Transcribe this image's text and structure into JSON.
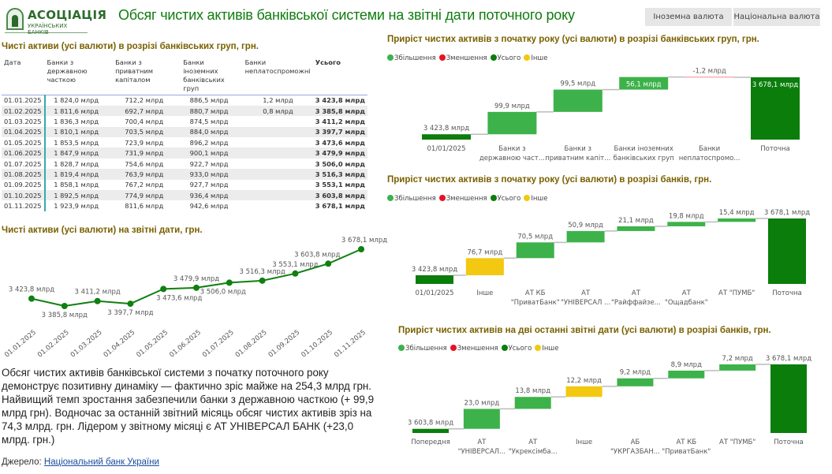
{
  "header": {
    "logo_line1": "АСОЦІАЦІЯ",
    "logo_line2": "УКРАЇНСЬКИХ БАНКІВ",
    "title": "Обсяг чистих активів  банківської системи на звітні дати поточного року",
    "btn_foreign": "Іноземна валюта",
    "btn_national": "Національна валюта"
  },
  "table": {
    "title": "Чисті активи    (усі валюти) в розрізі банківських груп,  грн.",
    "headers": [
      "Дата",
      "Банки з державною часткою",
      "Банки з приватним капіталом",
      "Банки іноземних банківських груп",
      "Банки неплатоспроможні",
      "Усього"
    ],
    "rows": [
      [
        "01.01.2025",
        "1 824,0 млрд",
        "712,2 млрд",
        "886,5 млрд",
        "1,2 млрд",
        "3 423,8 млрд"
      ],
      [
        "01.02.2025",
        "1 811,6 млрд",
        "692,7 млрд",
        "880,7 млрд",
        "0,8 млрд",
        "3 385,8 млрд"
      ],
      [
        "01.03.2025",
        "1 836,3 млрд",
        "700,4 млрд",
        "874,5 млрд",
        "",
        "3 411,2 млрд"
      ],
      [
        "01.04.2025",
        "1 810,1 млрд",
        "703,5 млрд",
        "884,0 млрд",
        "",
        "3 397,7 млрд"
      ],
      [
        "01.05.2025",
        "1 853,5 млрд",
        "723,9 млрд",
        "896,2 млрд",
        "",
        "3 473,6 млрд"
      ],
      [
        "01.06.2025",
        "1 847,9 млрд",
        "731,9 млрд",
        "900,1 млрд",
        "",
        "3 479,9 млрд"
      ],
      [
        "01.07.2025",
        "1 828,7 млрд",
        "754,6 млрд",
        "922,7 млрд",
        "",
        "3 506,0 млрд"
      ],
      [
        "01.08.2025",
        "1 819,4 млрд",
        "763,9 млрд",
        "933,0 млрд",
        "",
        "3 516,3 млрд"
      ],
      [
        "01.09.2025",
        "1 858,1 млрд",
        "767,2 млрд",
        "927,7 млрд",
        "",
        "3 553,1 млрд"
      ],
      [
        "01.10.2025",
        "1 892,5 млрд",
        "774,9 млрд",
        "936,4 млрд",
        "",
        "3 603,8 млрд"
      ],
      [
        "01.11.2025",
        "1 923,9 млрд",
        "811,6 млрд",
        "942,6 млрд",
        "",
        "3 678,1 млрд"
      ]
    ]
  },
  "legend": {
    "increase": "Збільшення",
    "decrease": "Зменшення",
    "total": "Усього",
    "other": "Інше"
  },
  "colors": {
    "increase": "#3db24a",
    "decrease": "#e81123",
    "total": "#0b7d0b",
    "other": "#f2c811",
    "title": "#107c10",
    "section": "#7a6000"
  },
  "chart_data": [
    {
      "type": "line",
      "title": "Чисті активи    (усі валюти) на звітні дати, грн.",
      "x": [
        "01.01.2025",
        "01.02.2025",
        "01.03.2025",
        "01.04.2025",
        "01.05.2025",
        "01.06.2025",
        "01.07.2025",
        "01.08.2025",
        "01.09.2025",
        "01.10.2025",
        "01.11.2025"
      ],
      "values": [
        3423.8,
        3385.8,
        3411.2,
        3397.7,
        3473.6,
        3479.9,
        3506.0,
        3516.3,
        3553.1,
        3603.8,
        3678.1
      ],
      "labels": [
        "3 423,8 млрд",
        "3 385,8 млрд",
        "3 411,2 млрд",
        "3 397,7 млрд",
        "3 473,6 млрд",
        "3 479,9 млрд",
        "3 506,0 млрд",
        "3 516,3 млрд",
        "3 553,1 млрд",
        "3 603,8 млрд",
        "3 678,1 млрд"
      ],
      "ylim": [
        3385.8,
        3678.1
      ]
    },
    {
      "type": "waterfall",
      "title": "Приріст чистих активів з початку року   (усі валюти) в розрізі банківських груп, грн.",
      "categories": [
        "01/01/2025",
        "Банки з\nдержавною част...",
        "Банки з\nприватним капіт...",
        "Банки іноземних\nбанківських груп",
        "Банки\nнеплатоспромо...",
        "Поточна"
      ],
      "kinds": [
        "total",
        "increase",
        "increase",
        "increase",
        "decrease",
        "total"
      ],
      "values": [
        3423.8,
        99.9,
        99.5,
        56.1,
        -1.2,
        3678.1
      ],
      "labels": [
        "3 423,8 млрд",
        "99,9 млрд",
        "99,5 млрд",
        "56,1 млрд",
        "-1,2 млрд",
        "3 678,1 млрд"
      ],
      "ylim": [
        3400,
        3678.1
      ]
    },
    {
      "type": "waterfall",
      "title": "Приріст чистих активів  з початку року   (усі валюти) в розрізі банків, грн.",
      "categories": [
        "01/01/2025",
        "Інше",
        "АТ КБ\n\"ПриватБанк\"",
        "АТ\n\"УНІВЕРСАЛ ...",
        "АТ\n\"Райффайзе...",
        "АТ\n\"Ощадбанк\"",
        "АТ \"ПУМБ\"",
        "Поточна"
      ],
      "kinds": [
        "total",
        "other",
        "increase",
        "increase",
        "increase",
        "increase",
        "increase",
        "total"
      ],
      "values": [
        3423.8,
        76.7,
        70.5,
        50.9,
        21.1,
        19.8,
        15.4,
        3678.1
      ],
      "labels": [
        "3 423,8 млрд",
        "76,7 млрд",
        "70,5 млрд",
        "50,9 млрд",
        "21,1 млрд",
        "19,8 млрд",
        "15,4 млрд",
        "3 678,1 млрд"
      ],
      "ylim": [
        3385,
        3678.1
      ]
    },
    {
      "type": "waterfall",
      "title": "Приріст чистих активів на дві останні звітні дати   (усі валюти) в розрізі банків, грн.",
      "categories": [
        "Попередня",
        "АТ\n\"УНІВЕРСАЛ...",
        "АТ\n\"Укрексімба...",
        "Інше",
        "АБ\n\"УКРГАЗБАН...",
        "АТ КБ\n\"ПриватБанк\"",
        "АТ \"ПУМБ\"",
        "Поточна"
      ],
      "kinds": [
        "total",
        "increase",
        "increase",
        "other",
        "increase",
        "increase",
        "increase",
        "total"
      ],
      "values": [
        3603.8,
        23.0,
        13.8,
        12.2,
        9.2,
        8.9,
        7.2,
        3678.1
      ],
      "labels": [
        "3 603,8 млрд",
        "23,0 млрд",
        "13,8 млрд",
        "12,2 млрд",
        "9,2 млрд",
        "8,9 млрд",
        "7,2 млрд",
        "3 678,1 млрд"
      ],
      "ylim": [
        3599,
        3678.1
      ]
    }
  ],
  "summary": "Обсяг чистих активів банківської системи з початку поточного року демонструє позитивну динаміку — фактично зріс майже на 254,3 млрд грн. Найвищий темп зростання забезпечили банки з державною часткою (+ 99,9 млрд грн). Водночас за останній звітний місяць обсяг чистих активів зріз на 74,3 млрд. грн. Лідером у звітному місяці є АТ УНІВЕРСАЛ БАНК (+23,0 млрд. грн.)",
  "source": {
    "label": "Джерело: ",
    "link": "Національний банк України"
  }
}
